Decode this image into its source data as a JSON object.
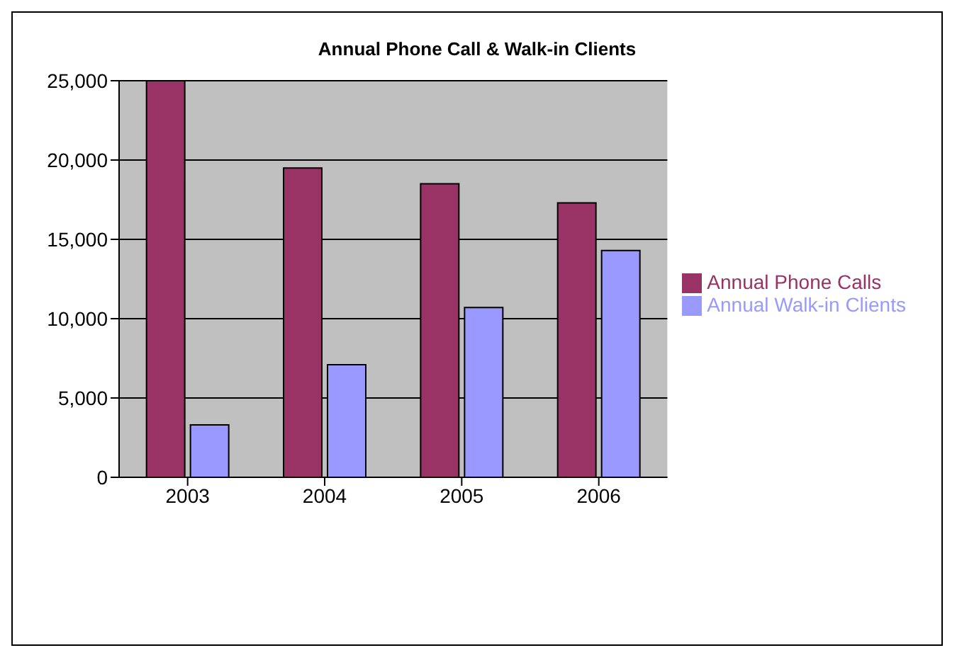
{
  "chart_data": {
    "type": "bar",
    "title": "Annual Phone Call & Walk-in Clients",
    "categories": [
      "2003",
      "2004",
      "2005",
      "2006"
    ],
    "series": [
      {
        "name": "Annual Phone Calls",
        "color": "#993366",
        "values": [
          25000,
          19500,
          18500,
          17300
        ]
      },
      {
        "name": "Annual Walk-in Clients",
        "color": "#9999ff",
        "values": [
          3300,
          7100,
          10700,
          14300
        ]
      }
    ],
    "ylim": [
      0,
      25000
    ],
    "yticks": [
      {
        "value": 0,
        "label": "0"
      },
      {
        "value": 5000,
        "label": "5,000"
      },
      {
        "value": 10000,
        "label": "10,000"
      },
      {
        "value": 15000,
        "label": "15,000"
      },
      {
        "value": 20000,
        "label": "20,000"
      },
      {
        "value": 25000,
        "label": "25,000"
      }
    ],
    "grid": "y",
    "legend": "right"
  }
}
